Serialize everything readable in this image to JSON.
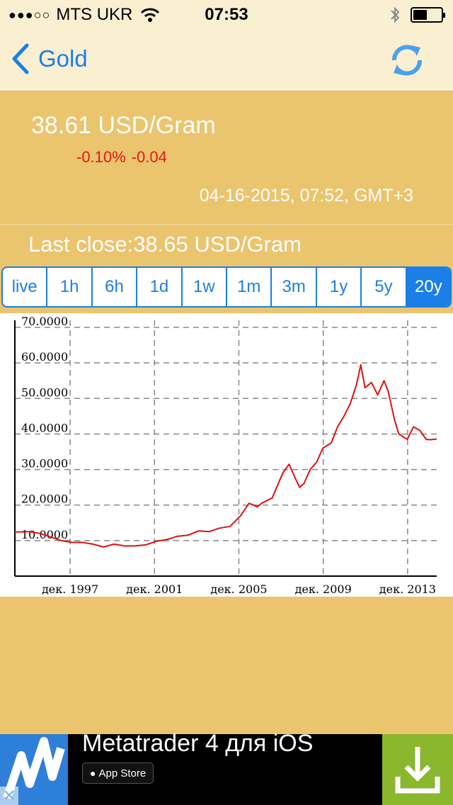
{
  "status_bar": {
    "carrier": "MTS UKR",
    "time": "07:53",
    "signal": "●●●○○",
    "battery_level": 0.5
  },
  "nav": {
    "back_label": "Gold",
    "refresh_icon": "refresh-icon"
  },
  "quote": {
    "price": "38.61 USD/Gram",
    "change_percent": "-0.10%",
    "change_value": "-0.04",
    "timestamp": "04-16-2015, 07:52, GMT+3",
    "last_close": "Last close:38.65 USD/Gram"
  },
  "ranges": [
    {
      "label": "live",
      "active": false
    },
    {
      "label": "1h",
      "active": false
    },
    {
      "label": "6h",
      "active": false
    },
    {
      "label": "1d",
      "active": false
    },
    {
      "label": "1w",
      "active": false
    },
    {
      "label": "1m",
      "active": false
    },
    {
      "label": "3m",
      "active": false
    },
    {
      "label": "1y",
      "active": false
    },
    {
      "label": "5y",
      "active": false
    },
    {
      "label": "20y",
      "active": true
    }
  ],
  "chart_data": {
    "type": "line",
    "title": "",
    "xlabel": "",
    "ylabel": "",
    "xlim": [
      1995.3,
      2015.3
    ],
    "ylim": [
      0,
      72
    ],
    "y_ticks": [
      10,
      20,
      30,
      40,
      50,
      60,
      70
    ],
    "y_tick_labels": [
      "10.0000",
      "20.0000",
      "30.0000",
      "40.0000",
      "50.0000",
      "60.0000",
      "70.0000"
    ],
    "x_ticks": [
      1997.92,
      2001.92,
      2005.92,
      2009.92,
      2013.92
    ],
    "x_tick_labels": [
      "дек. 1997",
      "дек. 2001",
      "дек. 2005",
      "дек. 2009",
      "дек. 2013"
    ],
    "grid": true,
    "line_color": "#e01010",
    "series": [
      {
        "x": [
          1995.3,
          1996.0,
          1996.5,
          1997.0,
          1997.5,
          1998.0,
          1998.5,
          1999.0,
          1999.5,
          2000.0,
          2000.5,
          2001.0,
          2001.5,
          2002.0,
          2002.5,
          2003.0,
          2003.5,
          2004.0,
          2004.5,
          2005.0,
          2005.5,
          2006.0,
          2006.4,
          2006.8,
          2007.0,
          2007.5,
          2008.0,
          2008.3,
          2008.6,
          2008.8,
          2009.0,
          2009.3,
          2009.6,
          2009.9,
          2010.3,
          2010.6,
          2010.9,
          2011.2,
          2011.5,
          2011.7,
          2011.9,
          2012.2,
          2012.5,
          2012.8,
          2013.0,
          2013.3,
          2013.5,
          2013.9,
          2014.2,
          2014.5,
          2014.8,
          2015.0,
          2015.3
        ],
        "y": [
          12.4,
          12.5,
          12.0,
          11.0,
          10.0,
          9.5,
          9.5,
          9.0,
          8.2,
          9.0,
          8.5,
          8.5,
          8.8,
          9.8,
          10.3,
          11.2,
          11.5,
          12.7,
          12.5,
          13.5,
          14.0,
          17.0,
          20.5,
          19.5,
          20.5,
          22.0,
          29.0,
          31.5,
          27.5,
          25.0,
          26.0,
          30.0,
          32.0,
          36.0,
          37.5,
          42.0,
          45.0,
          48.5,
          54.0,
          59.5,
          53.0,
          54.5,
          51.0,
          55.0,
          52.0,
          44.0,
          40.0,
          38.5,
          42.0,
          41.0,
          38.5,
          38.4,
          38.6
        ]
      }
    ]
  },
  "ad": {
    "title": "Metatrader 4 для iOS",
    "store_label": "App Store",
    "close_glyph": "✕",
    "download_icon": "download-icon",
    "logo_icon": "metatrader-logo-icon"
  }
}
